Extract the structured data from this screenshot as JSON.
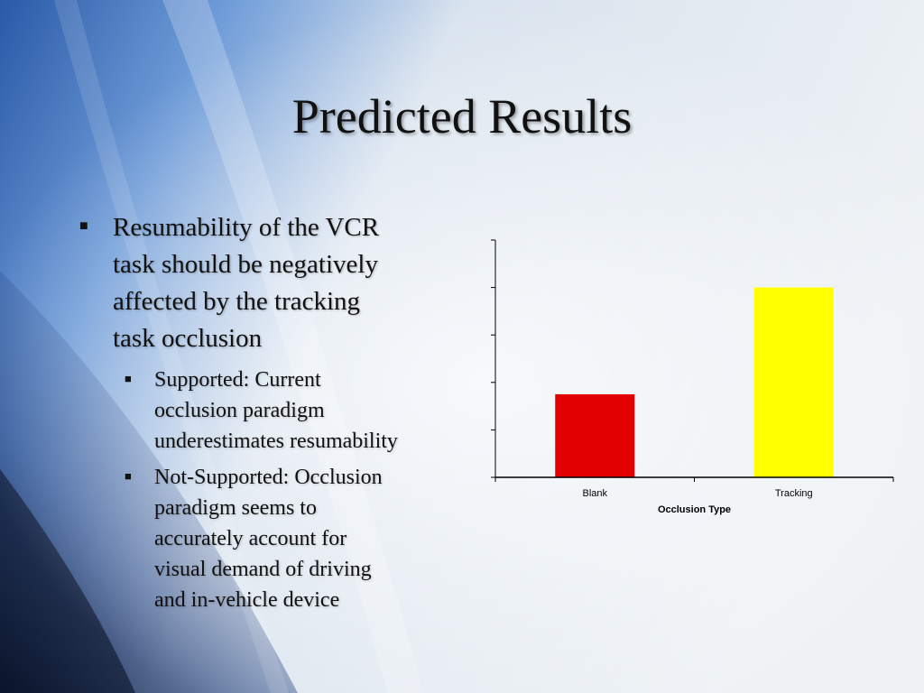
{
  "slide": {
    "title": "Predicted Results",
    "bullets": [
      {
        "text": "Resumability of the VCR\ntask should be negatively\naffected by the tracking\ntask occlusion",
        "subs": [
          {
            "text": "Supported: Current\nocclusion paradigm\nunderestimates resumability"
          },
          {
            "text": "Not-Supported: Occlusion\nparadigm seems to\naccurately account for\nvisual demand of driving\nand in-vehicle device"
          }
        ]
      }
    ],
    "bullet_marker": "■"
  },
  "colors": {
    "blank_bar": "#e00000",
    "tracking_bar": "#ffff00",
    "axis": "#000000",
    "title_text": "#111111"
  },
  "chart_data": {
    "type": "bar",
    "title": "",
    "xlabel": "Occlusion Type",
    "ylabel": "",
    "categories": [
      "Blank",
      "Tracking"
    ],
    "values": [
      1.75,
      4.0
    ],
    "ylim": [
      0,
      5
    ],
    "y_ticks_labeled": false,
    "grid": false,
    "legend": "none"
  }
}
